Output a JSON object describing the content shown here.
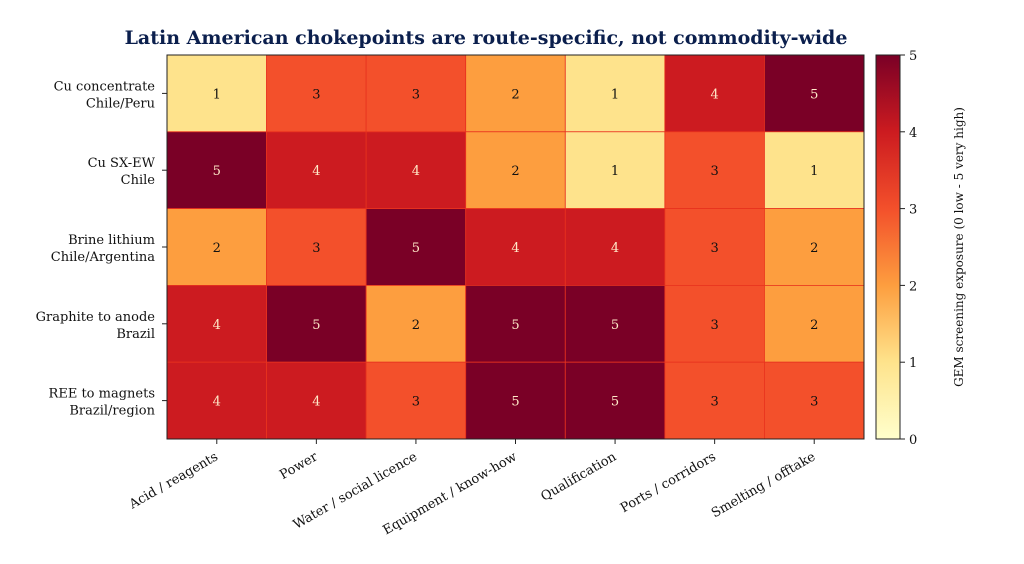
{
  "chart_data": {
    "type": "heatmap",
    "title": "Latin American chokepoints are route-specific, not commodity-wide",
    "rows": [
      "Cu concentrate\nChile/Peru",
      "Cu SX-EW\nChile",
      "Brine lithium\nChile/Argentina",
      "Graphite to anode\nBrazil",
      "REE to magnets\nBrazil/region"
    ],
    "columns": [
      "Acid / reagents",
      "Power",
      "Water / social licence",
      "Equipment / know-how",
      "Qualification",
      "Ports / corridors",
      "Smelting / offtake"
    ],
    "values": [
      [
        1,
        3,
        3,
        2,
        1,
        4,
        5
      ],
      [
        5,
        4,
        4,
        2,
        1,
        3,
        1
      ],
      [
        2,
        3,
        5,
        4,
        4,
        3,
        2
      ],
      [
        4,
        5,
        2,
        5,
        5,
        3,
        2
      ],
      [
        4,
        4,
        3,
        5,
        5,
        3,
        3
      ]
    ],
    "colorbar": {
      "label": "GEM screening exposure (0 low - 5 very high)",
      "range": [
        0,
        5
      ],
      "ticks": [
        "0",
        "1",
        "2",
        "3",
        "4",
        "5"
      ]
    },
    "colors": {
      "0": "#ffffcc",
      "1": "#fee38c",
      "2": "#fd9e3f",
      "3": "#f3502b",
      "4": "#cc1b20",
      "5": "#7a0026",
      "title": "#0b1f4d"
    }
  }
}
